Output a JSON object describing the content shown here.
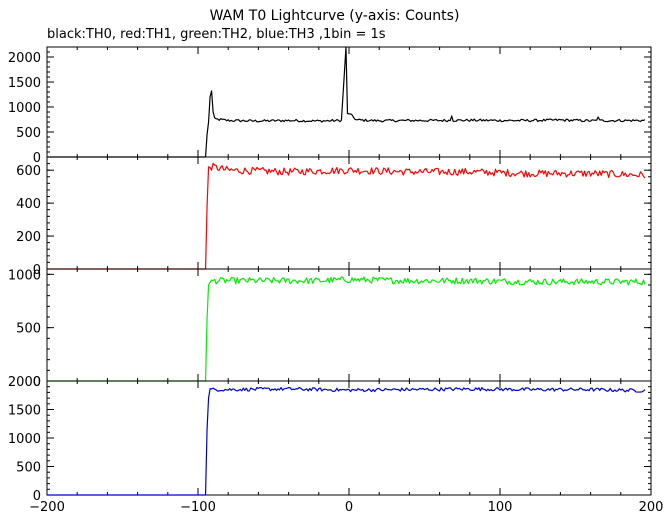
{
  "page": {
    "title": "WAM T0 Lightcurve (y-axis: Counts)",
    "subtitle": "black:TH0, red:TH1, green:TH2, blue:TH3 ,1bin = 1s"
  },
  "chart_data": {
    "type": "line",
    "title": "WAM T0 Lightcurve (y-axis: Counts)",
    "subtitle": "black:TH0, red:TH1, green:TH2, blue:TH3 ,1bin = 1s",
    "xlim": [
      -200,
      200
    ],
    "x_ticks": [
      -200,
      -100,
      0,
      100,
      200
    ],
    "x_tick_labels": [
      "−200",
      "−100",
      "0",
      "100",
      "200"
    ],
    "panels": [
      {
        "name": "TH0",
        "color": "#000000",
        "ylim": [
          0,
          2200
        ],
        "y_ticks": [
          0,
          500,
          1000,
          1500,
          2000
        ],
        "points": [
          [
            -200,
            0
          ],
          [
            -95,
            0
          ],
          [
            -94,
            450
          ],
          [
            -93,
            700
          ],
          [
            -92,
            1200
          ],
          [
            -91,
            1330
          ],
          [
            -90,
            900
          ],
          [
            -89,
            760
          ],
          [
            -80,
            730
          ],
          [
            -60,
            720
          ],
          [
            -40,
            730
          ],
          [
            -20,
            720
          ],
          [
            -5,
            730
          ],
          [
            -2,
            2200
          ],
          [
            -1,
            900
          ],
          [
            5,
            740
          ],
          [
            20,
            725
          ],
          [
            40,
            730
          ],
          [
            60,
            730
          ],
          [
            80,
            735
          ],
          [
            100,
            730
          ],
          [
            120,
            730
          ],
          [
            140,
            740
          ],
          [
            160,
            725
          ],
          [
            180,
            730
          ],
          [
            196,
            730
          ]
        ],
        "noise": 25,
        "spikes": [
          [
            -2,
            2200
          ],
          [
            -1,
            870
          ],
          [
            68,
            820
          ],
          [
            165,
            800
          ]
        ]
      },
      {
        "name": "TH1",
        "color": "#ff0000",
        "ylim": [
          0,
          680
        ],
        "y_ticks": [
          0,
          200,
          400,
          600
        ],
        "points": [
          [
            -200,
            0
          ],
          [
            -95,
            0
          ],
          [
            -94,
            380
          ],
          [
            -93,
            620
          ],
          [
            -90,
            620
          ],
          [
            -80,
            600
          ],
          [
            -40,
            590
          ],
          [
            0,
            600
          ],
          [
            40,
            590
          ],
          [
            80,
            590
          ],
          [
            120,
            580
          ],
          [
            160,
            580
          ],
          [
            196,
            570
          ]
        ],
        "noise": 22,
        "spikes": []
      },
      {
        "name": "TH2",
        "color": "#00ee00",
        "ylim": [
          0,
          1050
        ],
        "y_ticks": [
          0,
          500,
          1000
        ],
        "points": [
          [
            -200,
            0
          ],
          [
            -95,
            0
          ],
          [
            -94,
            580
          ],
          [
            -93,
            900
          ],
          [
            -90,
            940
          ],
          [
            -60,
            940
          ],
          [
            -20,
            940
          ],
          [
            0,
            950
          ],
          [
            40,
            940
          ],
          [
            80,
            940
          ],
          [
            120,
            930
          ],
          [
            160,
            930
          ],
          [
            196,
            930
          ]
        ],
        "noise": 30,
        "spikes": []
      },
      {
        "name": "TH3",
        "color": "#0000cc",
        "ylim": [
          0,
          2000
        ],
        "y_ticks": [
          0,
          500,
          1000,
          1500,
          2000
        ],
        "points": [
          [
            -200,
            0
          ],
          [
            -95,
            0
          ],
          [
            -94,
            1150
          ],
          [
            -93,
            1700
          ],
          [
            -92,
            1850
          ],
          [
            -80,
            1850
          ],
          [
            -40,
            1860
          ],
          [
            0,
            1840
          ],
          [
            40,
            1850
          ],
          [
            80,
            1860
          ],
          [
            120,
            1850
          ],
          [
            160,
            1850
          ],
          [
            196,
            1830
          ]
        ],
        "noise": 30,
        "spikes": []
      }
    ]
  }
}
